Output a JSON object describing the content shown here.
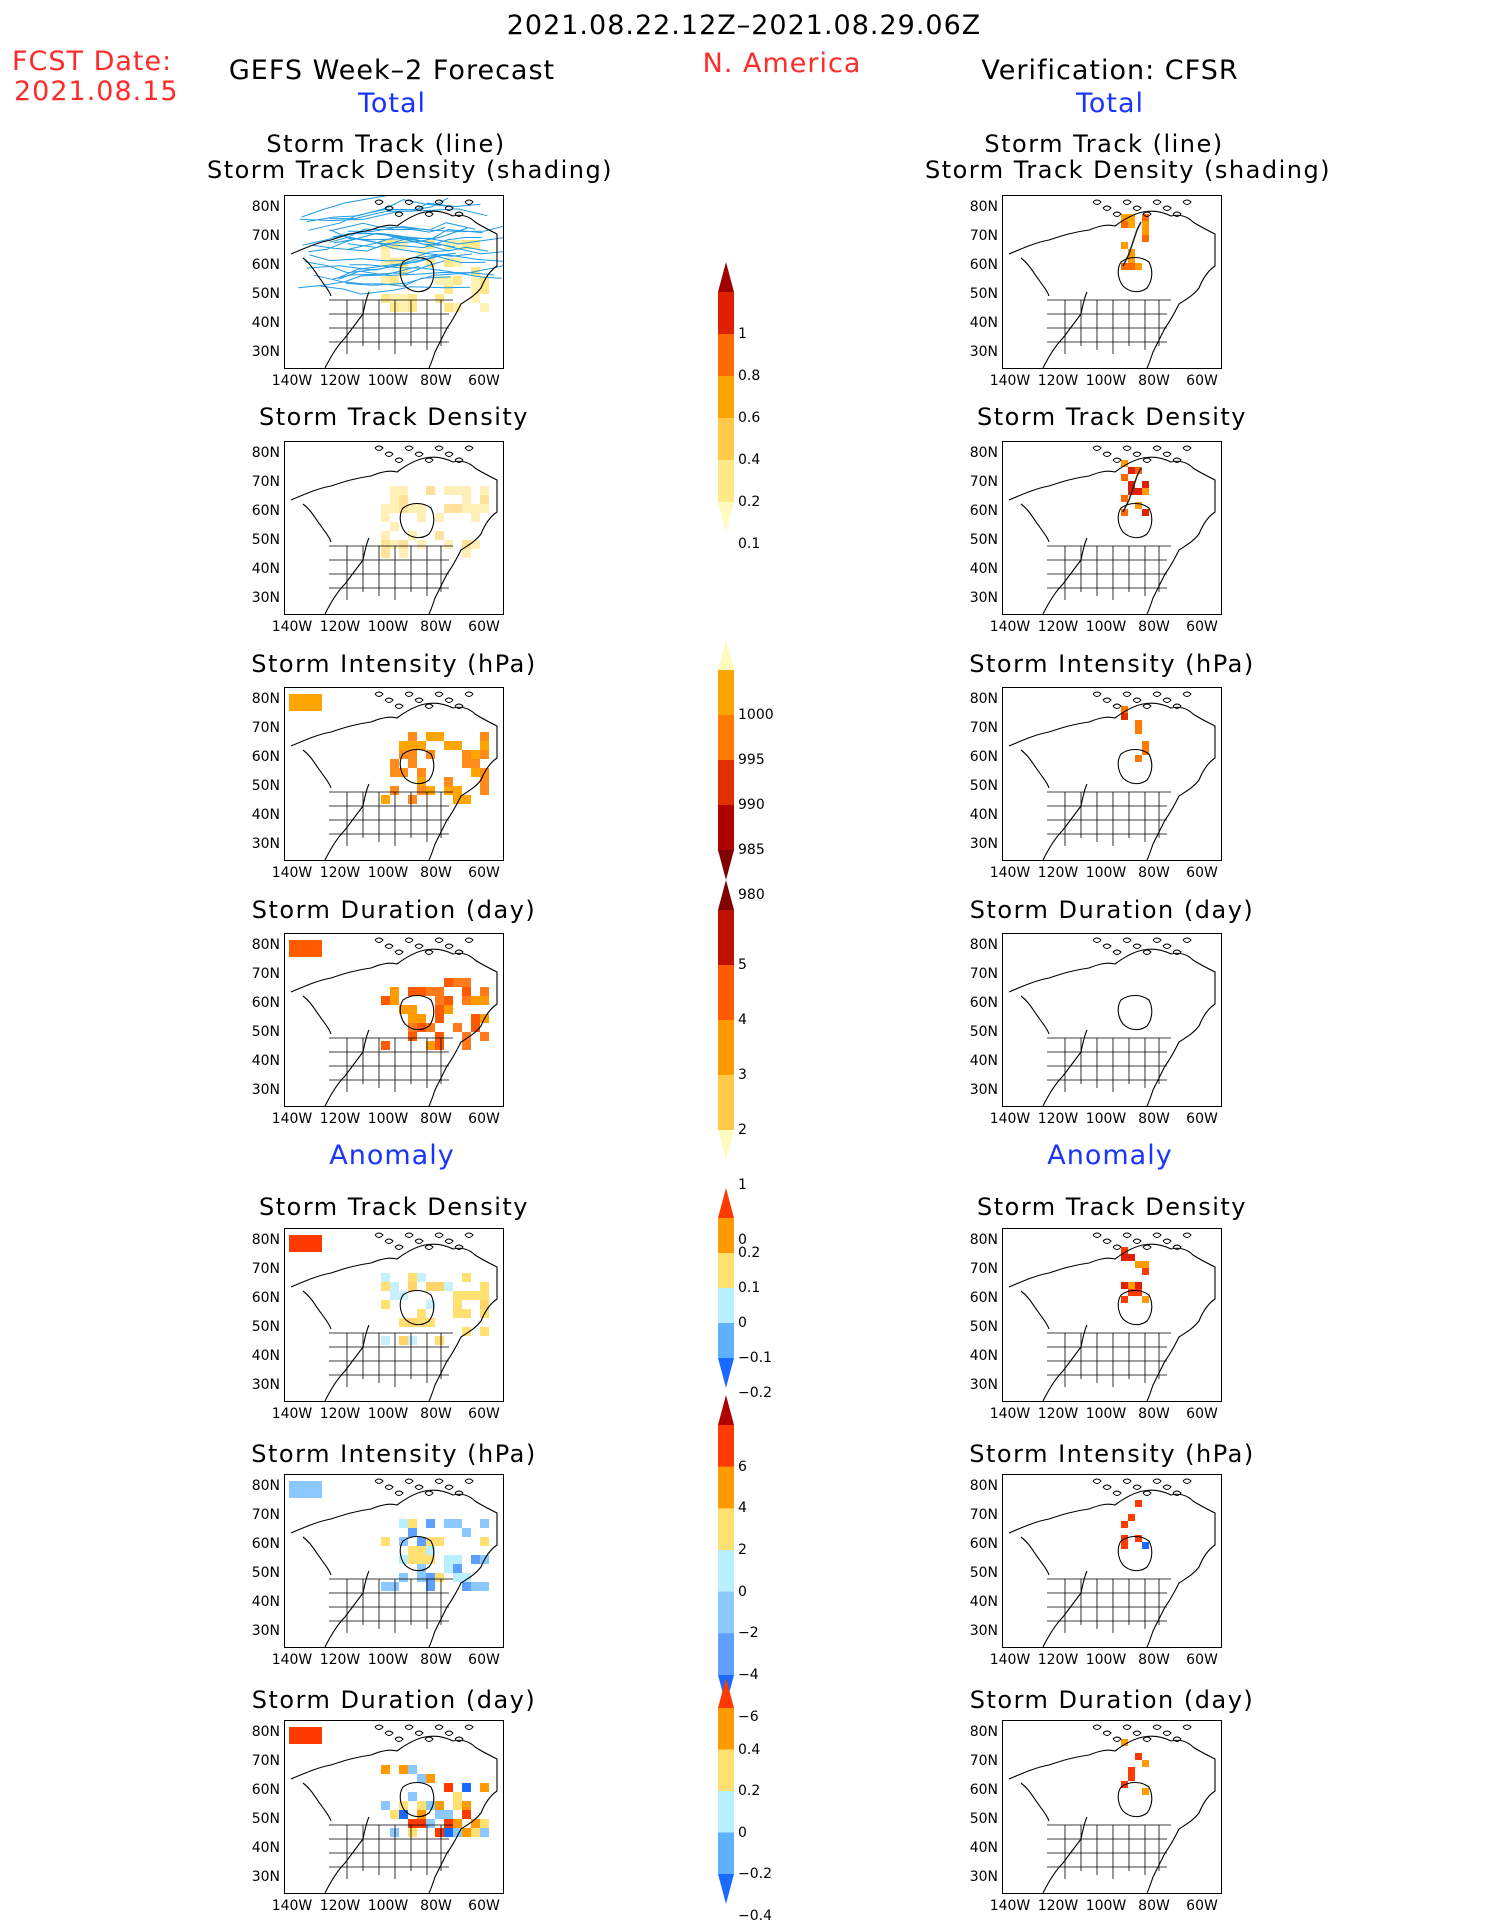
{
  "header": {
    "date_range": "2021.08.22.12Z–2021.08.29.06Z",
    "fcst_label": "FCST Date:",
    "fcst_date": "2021.08.15",
    "region": "N. America",
    "left_title": "GEFS Week–2 Forecast",
    "right_title": "Verification: CFSR",
    "total_label": "Total",
    "anomaly_label": "Anomaly"
  },
  "panel_titles": {
    "track_line": "Storm Track (line)",
    "track_shading": "Storm Track Density (shading)",
    "density": "Storm Track Density",
    "intensity": "Storm Intensity (hPa)",
    "duration": "Storm Duration (day)"
  },
  "axes": {
    "lat_labels": [
      "80N",
      "70N",
      "60N",
      "50N",
      "40N",
      "30N"
    ],
    "lon_labels": [
      "140W",
      "120W",
      "100W",
      "80W",
      "60W"
    ]
  },
  "colorbars": {
    "density_total": {
      "labels": [
        "1",
        "0.8",
        "0.6",
        "0.4",
        "0.2",
        "0.1"
      ],
      "colors": [
        "#a00000",
        "#e02000",
        "#ff6a00",
        "#ffa500",
        "#ffc94a",
        "#ffe88a",
        "#fffbc0"
      ]
    },
    "intensity_total": {
      "labels": [
        "1000",
        "995",
        "990",
        "985",
        "980"
      ],
      "colors": [
        "#fffbc0",
        "#ffa500",
        "#ff7a00",
        "#e03000",
        "#b00000",
        "#800000"
      ]
    },
    "duration_total": {
      "labels": [
        "5",
        "4",
        "3",
        "2",
        "1",
        "0"
      ],
      "colors": [
        "#800000",
        "#c01000",
        "#ff5a00",
        "#ff9a00",
        "#ffc94a",
        "#fffbc0"
      ]
    },
    "density_anom": {
      "labels": [
        "0.2",
        "0.1",
        "0",
        "−0.1",
        "−0.2"
      ],
      "colors": [
        "#ff3a00",
        "#ff9a00",
        "#ffe070",
        "#b8f0ff",
        "#5fb0ff",
        "#1a6aff"
      ]
    },
    "intensity_anom": {
      "labels": [
        "6",
        "4",
        "2",
        "0",
        "−2",
        "−4",
        "−6"
      ],
      "colors": [
        "#b00000",
        "#ff3a00",
        "#ff9a00",
        "#ffe070",
        "#b8f0ff",
        "#8ac8ff",
        "#5fa0ff",
        "#1a6aff"
      ]
    },
    "duration_anom": {
      "labels": [
        "0.4",
        "0.2",
        "0",
        "−0.2",
        "−0.4"
      ],
      "colors": [
        "#ff3a00",
        "#ff9a00",
        "#ffe070",
        "#b8f0ff",
        "#5fb0ff",
        "#1a6aff"
      ]
    }
  }
}
